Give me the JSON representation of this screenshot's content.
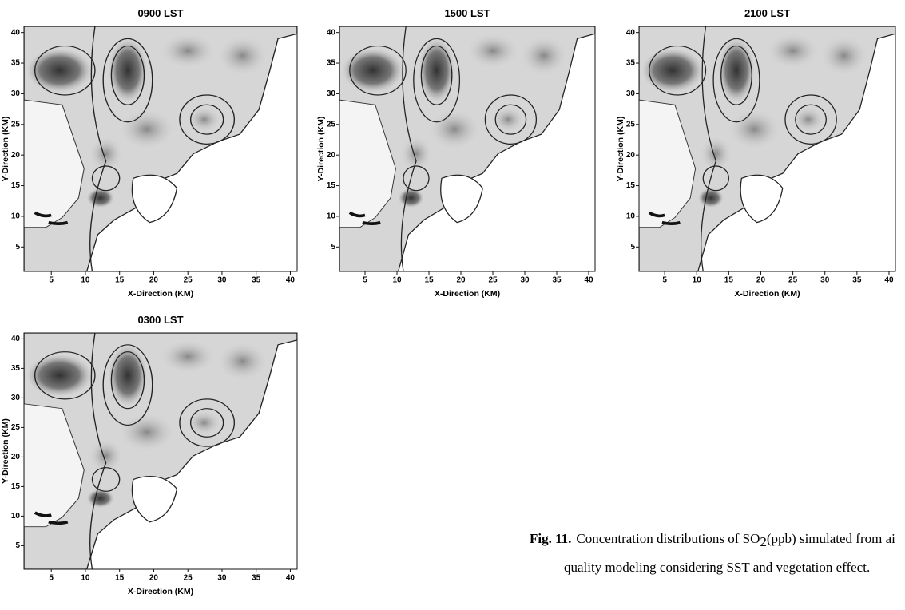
{
  "panels": [
    {
      "title": "0900 LST",
      "x_label": "X-Direction (KM)",
      "y_label": "Y-Direction (KM)",
      "xlim": [
        1,
        41
      ],
      "ylim": [
        1,
        41
      ],
      "xticks": [
        5,
        10,
        15,
        20,
        25,
        30,
        35,
        40
      ],
      "yticks": [
        5,
        10,
        15,
        20,
        25,
        30,
        35,
        40
      ]
    },
    {
      "title": "1500 LST",
      "x_label": "X-Direction (KM)",
      "y_label": "Y-Direction (KM)",
      "xlim": [
        1,
        41
      ],
      "ylim": [
        1,
        41
      ],
      "xticks": [
        5,
        10,
        15,
        20,
        25,
        30,
        35,
        40
      ],
      "yticks": [
        5,
        10,
        15,
        20,
        25,
        30,
        35,
        40
      ]
    },
    {
      "title": "2100 LST",
      "x_label": "X-Direction (KM)",
      "y_label": "Y-Direction (KM)",
      "xlim": [
        1,
        41
      ],
      "ylim": [
        1,
        41
      ],
      "xticks": [
        5,
        10,
        15,
        20,
        25,
        30,
        35,
        40
      ],
      "yticks": [
        5,
        10,
        15,
        20,
        25,
        30,
        35,
        40
      ]
    },
    {
      "title": "0300 LST",
      "x_label": "X-Direction (KM)",
      "y_label": "Y-Direction (KM)",
      "xlim": [
        1,
        41
      ],
      "ylim": [
        1,
        41
      ],
      "xticks": [
        5,
        10,
        15,
        20,
        25,
        30,
        35,
        40
      ],
      "yticks": [
        5,
        10,
        15,
        20,
        25,
        30,
        35,
        40
      ]
    }
  ],
  "caption": {
    "label": "Fig. 11.",
    "line1_a": "Concentration distributions of SO",
    "line1_sub": "2",
    "line1_b": "(ppb) simulated from ai",
    "line2": "quality modeling considering SST and vegetation effect."
  }
}
